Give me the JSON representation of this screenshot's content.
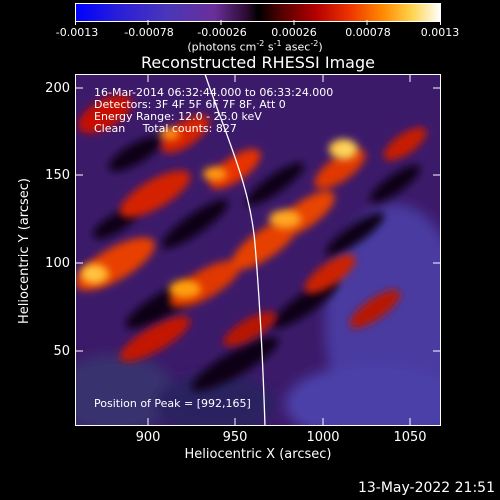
{
  "title": "Reconstructed RHESSI Image",
  "colorbar": {
    "tick_labels": [
      "-0.0013",
      "-0.00078",
      "-0.00026",
      "0.00026",
      "0.00078",
      "0.0013"
    ],
    "unit_line1": "(photons cm",
    "unit_sup1": "-2",
    "unit_mid1": " s",
    "unit_sup2": "-1",
    "unit_mid2": " asec",
    "unit_sup3": "-2",
    "unit_end": ")"
  },
  "annotations": {
    "time_range": "16-Mar-2014 06:32:44.000 to 06:33:24.000",
    "detectors": "Detectors: 3F 4F 5F 6F 7F 8F, Att 0",
    "energy_range": "Energy Range: 12.0 - 25.0 keV",
    "clean_counts": "Clean     Total counts: 827",
    "peak": "Position of Peak = [992,165]"
  },
  "axes": {
    "xlabel": "Heliocentric X (arcsec)",
    "ylabel": "Heliocentric Y (arcsec)",
    "x_ticks": [
      "900",
      "950",
      "1000",
      "1050"
    ],
    "y_ticks": [
      "200",
      "150",
      "100",
      "50"
    ]
  },
  "footer_date": "13-May-2022 21:51",
  "colors": {
    "background": "#000000",
    "text": "#ffffff",
    "limb_line": "#ffffff"
  }
}
